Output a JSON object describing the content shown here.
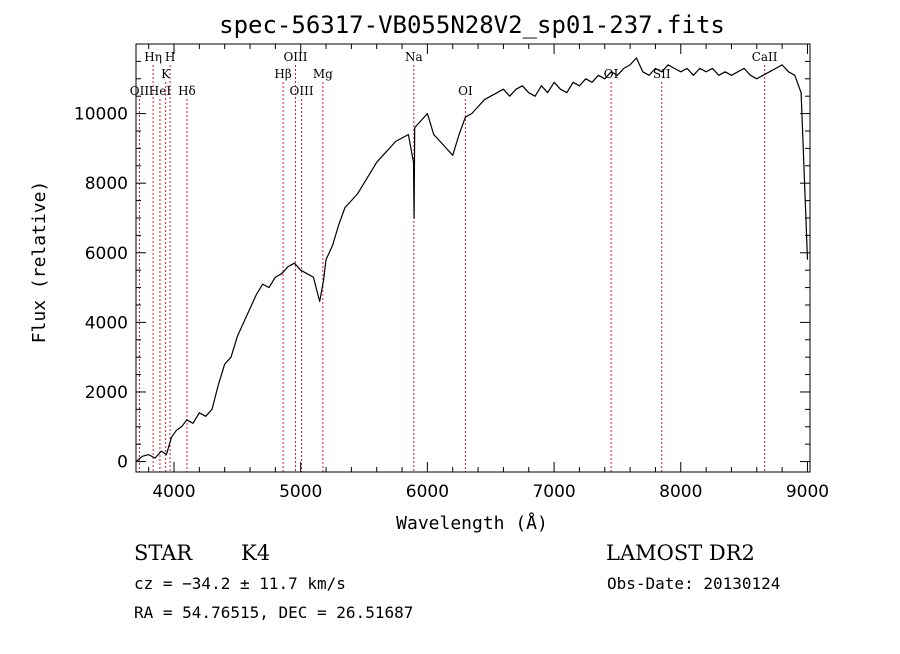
{
  "chart_data": {
    "type": "line",
    "title": "spec-56317-VB055N28V2_sp01-237.fits",
    "xlabel": "Wavelength (Å)",
    "ylabel": "Flux (relative)",
    "xlim": [
      3700,
      9020
    ],
    "ylim": [
      -300,
      12000
    ],
    "x_ticks": [
      4000,
      5000,
      6000,
      7000,
      8000,
      9000
    ],
    "x_tick_labels": [
      "4000",
      "5000",
      "6000",
      "7000",
      "8000",
      "9000"
    ],
    "y_ticks": [
      0,
      2000,
      4000,
      6000,
      8000,
      10000
    ],
    "y_tick_labels": [
      "0",
      "2000",
      "4000",
      "6000",
      "8000",
      "10000"
    ],
    "grid": false,
    "series": [
      {
        "x": [
          3700,
          3750,
          3800,
          3850,
          3900,
          3940,
          3980,
          4020,
          4060,
          4100,
          4150,
          4200,
          4250,
          4300,
          4350,
          4400,
          4450,
          4500,
          4550,
          4600,
          4650,
          4700,
          4750,
          4800,
          4850,
          4900,
          4950,
          5000,
          5050,
          5100,
          5150,
          5180,
          5200,
          5250,
          5300,
          5350,
          5400,
          5450,
          5500,
          5550,
          5600,
          5650,
          5700,
          5750,
          5800,
          5850,
          5890,
          5895,
          5900,
          5950,
          6000,
          6050,
          6100,
          6150,
          6200,
          6250,
          6300,
          6350,
          6400,
          6450,
          6500,
          6550,
          6600,
          6650,
          6700,
          6750,
          6800,
          6850,
          6900,
          6950,
          7000,
          7050,
          7100,
          7150,
          7200,
          7250,
          7300,
          7350,
          7400,
          7450,
          7500,
          7550,
          7600,
          7650,
          7700,
          7750,
          7800,
          7850,
          7900,
          7950,
          8000,
          8050,
          8100,
          8150,
          8200,
          8250,
          8300,
          8350,
          8400,
          8450,
          8500,
          8550,
          8600,
          8650,
          8700,
          8750,
          8800,
          8850,
          8900,
          8950,
          9000
        ],
        "y": [
          0,
          150,
          200,
          100,
          300,
          200,
          700,
          900,
          1000,
          1200,
          1100,
          1400,
          1300,
          1500,
          2200,
          2800,
          3000,
          3600,
          4000,
          4400,
          4800,
          5100,
          5000,
          5300,
          5400,
          5600,
          5700,
          5500,
          5400,
          5300,
          4600,
          5200,
          5800,
          6200,
          6800,
          7300,
          7500,
          7700,
          8000,
          8300,
          8600,
          8800,
          9000,
          9200,
          9300,
          9400,
          8600,
          7000,
          9600,
          9800,
          10000,
          9400,
          9200,
          9000,
          8800,
          9400,
          9900,
          10000,
          10200,
          10400,
          10500,
          10600,
          10700,
          10500,
          10700,
          10800,
          10600,
          10500,
          10800,
          10600,
          10900,
          10700,
          10600,
          10900,
          10800,
          11000,
          10900,
          11100,
          11000,
          11200,
          11100,
          11300,
          11400,
          11600,
          11200,
          11100,
          11300,
          11200,
          11400,
          11300,
          11200,
          11300,
          11100,
          11300,
          11200,
          11300,
          11100,
          11200,
          11100,
          11200,
          11300,
          11100,
          11000,
          11100,
          11200,
          11300,
          11400,
          11200,
          11100,
          10600,
          5800
        ]
      }
    ],
    "line_markers": [
      {
        "label": "OII",
        "wavelength": 3727,
        "row": "bottom"
      },
      {
        "label": "Hη",
        "wavelength": 3835,
        "row": "top"
      },
      {
        "label": "HeI",
        "wavelength": 3889,
        "row": "bottom"
      },
      {
        "label": "K",
        "wavelength": 3934,
        "row": "middle"
      },
      {
        "label": "H",
        "wavelength": 3969,
        "row": "top"
      },
      {
        "label": "Hδ",
        "wavelength": 4102,
        "row": "bottom"
      },
      {
        "label": "Hβ",
        "wavelength": 4861,
        "row": "middle"
      },
      {
        "label": "OIII",
        "wavelength": 4959,
        "row": "top"
      },
      {
        "label": "OIII",
        "wavelength": 5007,
        "row": "bottom"
      },
      {
        "label": "Mg",
        "wavelength": 5175,
        "row": "middle"
      },
      {
        "label": "Na",
        "wavelength": 5893,
        "row": "top"
      },
      {
        "label": "OI",
        "wavelength": 6300,
        "row": "bottom"
      },
      {
        "label": "OI",
        "wavelength": 7450,
        "row": "middle"
      },
      {
        "label": "SII",
        "wavelength": 7850,
        "row": "middle"
      },
      {
        "label": "CaII",
        "wavelength": 8662,
        "row": "top"
      }
    ]
  },
  "info": {
    "object_class": "STAR",
    "subclass": "K4",
    "survey": "LAMOST DR2",
    "redshift": "cz = −34.2 ± 11.7 km/s",
    "obs_date": "Obs-Date: 20130124",
    "coords": "RA =  54.76515, DEC =  26.51687"
  }
}
